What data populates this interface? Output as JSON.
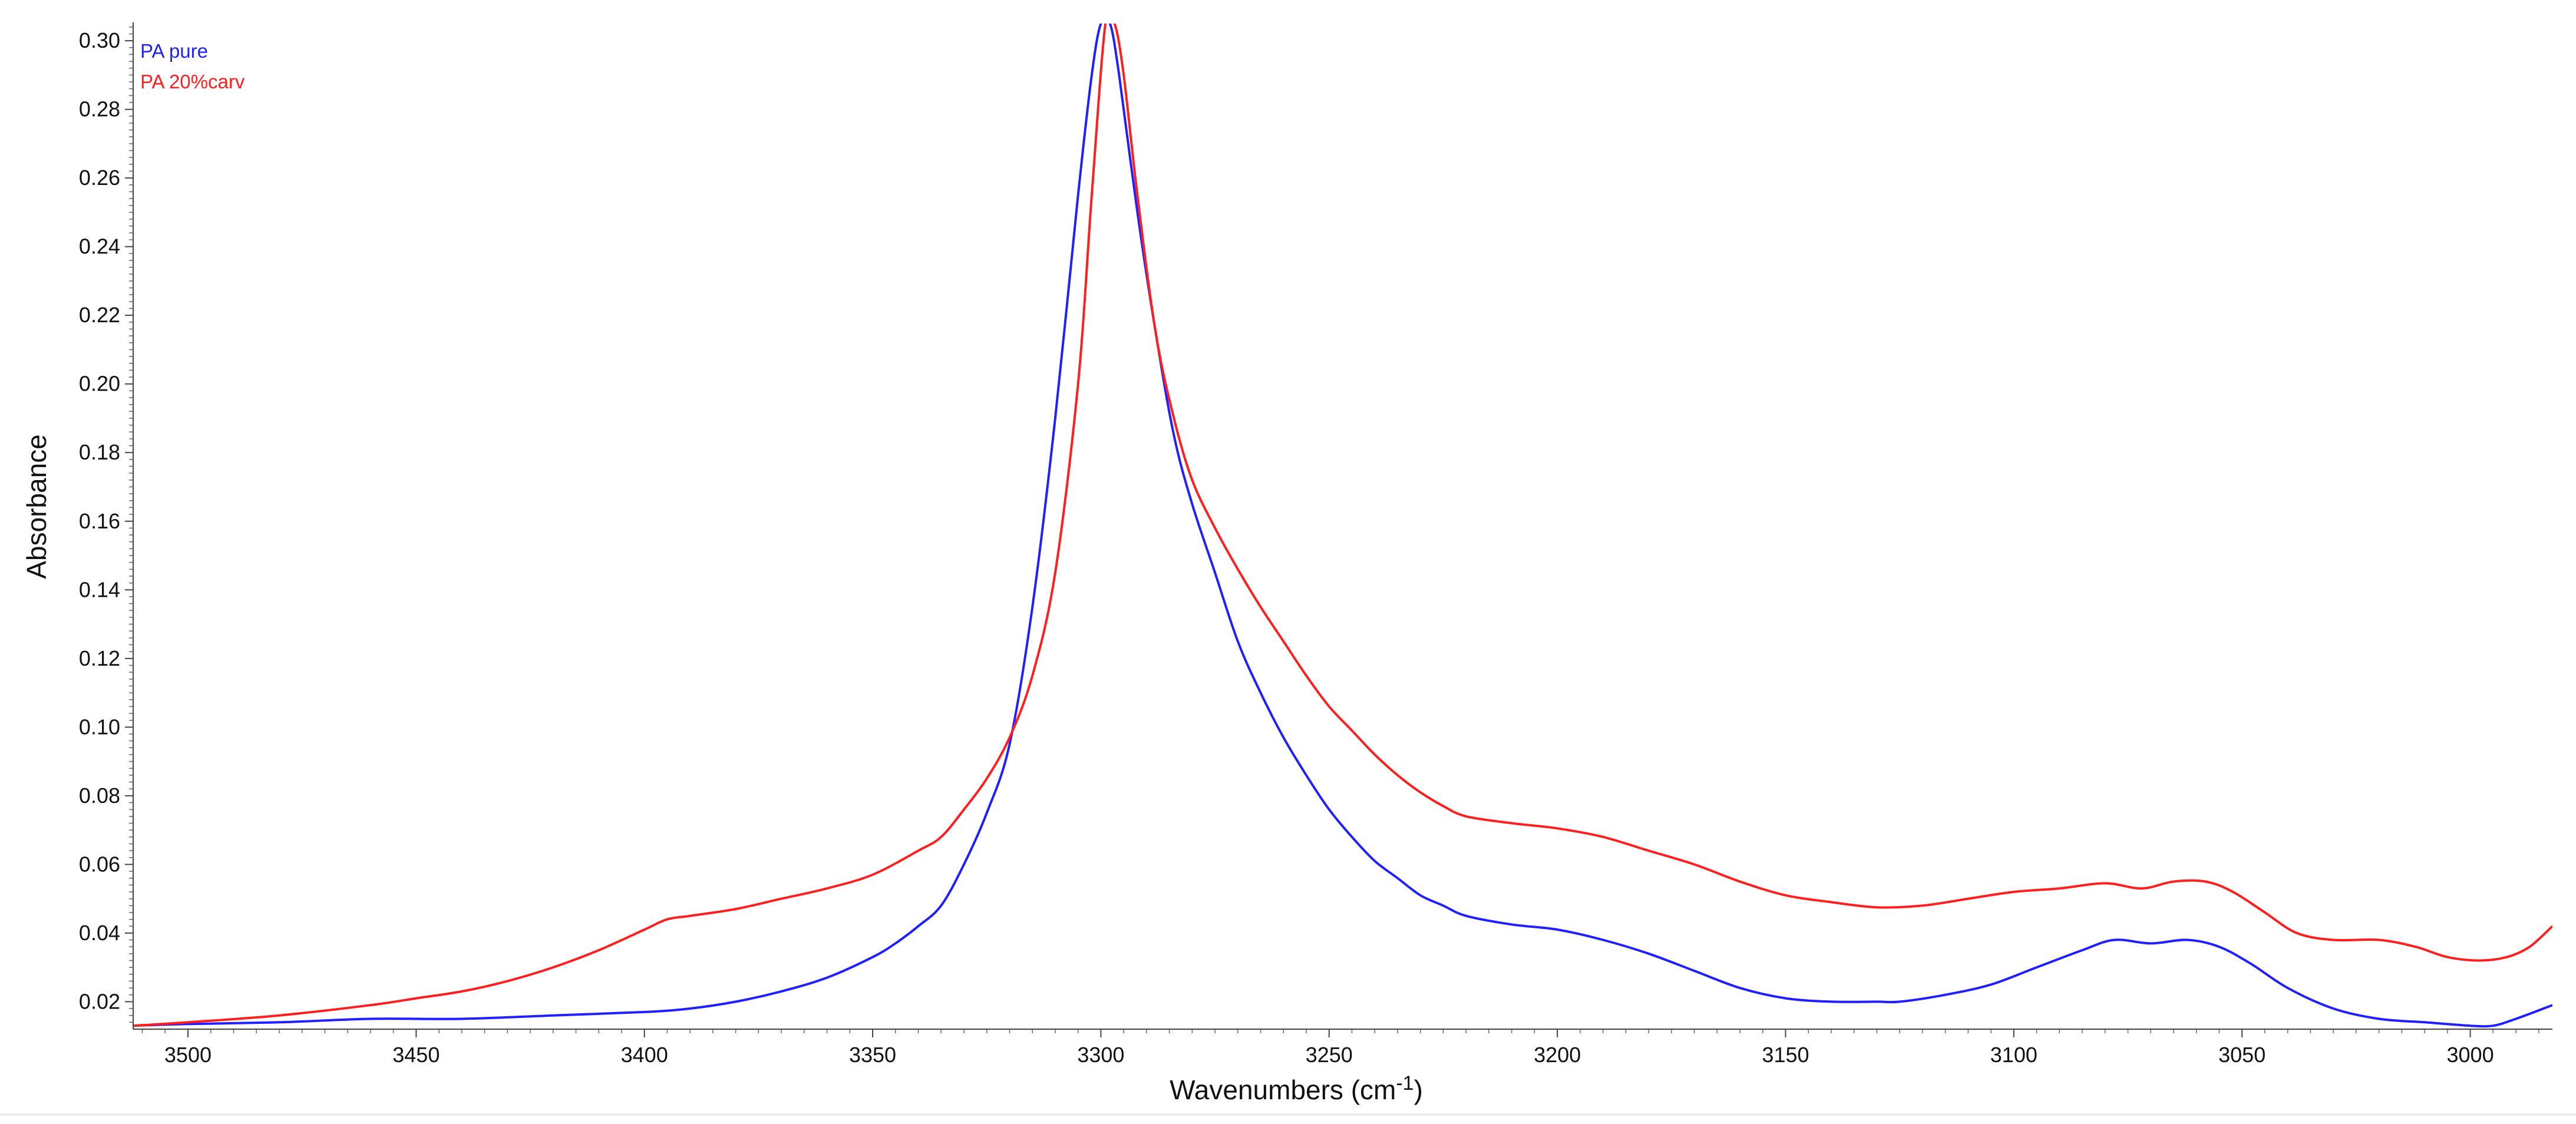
{
  "chart_data": {
    "type": "line",
    "xlabel": "Wavenumbers (cm",
    "xlabel_superscript": "-1",
    "xlabel_suffix": ")",
    "ylabel": "Absorbance",
    "xlim": [
      3512,
      2982
    ],
    "x_reversed": true,
    "ylim": [
      0.012,
      0.305
    ],
    "x_ticks": [
      3500,
      3450,
      3400,
      3350,
      3300,
      3250,
      3200,
      3150,
      3100,
      3050,
      3000
    ],
    "y_ticks": [
      0.02,
      0.04,
      0.06,
      0.08,
      0.1,
      0.12,
      0.14,
      0.16,
      0.18,
      0.2,
      0.22,
      0.24,
      0.26,
      0.28,
      0.3
    ],
    "y_tick_labels": [
      "0.02",
      "0.04",
      "0.06",
      "0.08",
      "0.10",
      "0.12",
      "0.14",
      "0.16",
      "0.18",
      "0.20",
      "0.22",
      "0.24",
      "0.26",
      "0.28",
      "0.30"
    ],
    "grid": false,
    "legend_position": "top-left",
    "series": [
      {
        "name": "PA pure",
        "color": "#1f1fff",
        "points": [
          [
            3512,
            0.013
          ],
          [
            3500,
            0.0135
          ],
          [
            3480,
            0.014
          ],
          [
            3460,
            0.015
          ],
          [
            3440,
            0.015
          ],
          [
            3420,
            0.016
          ],
          [
            3400,
            0.017
          ],
          [
            3390,
            0.018
          ],
          [
            3380,
            0.02
          ],
          [
            3370,
            0.023
          ],
          [
            3360,
            0.027
          ],
          [
            3350,
            0.033
          ],
          [
            3345,
            0.037
          ],
          [
            3340,
            0.042
          ],
          [
            3335,
            0.048
          ],
          [
            3330,
            0.06
          ],
          [
            3325,
            0.075
          ],
          [
            3320,
            0.095
          ],
          [
            3315,
            0.135
          ],
          [
            3310,
            0.19
          ],
          [
            3305,
            0.255
          ],
          [
            3302,
            0.29
          ],
          [
            3300,
            0.305
          ],
          [
            3298,
            0.305
          ],
          [
            3296,
            0.29
          ],
          [
            3292,
            0.25
          ],
          [
            3288,
            0.215
          ],
          [
            3284,
            0.185
          ],
          [
            3280,
            0.165
          ],
          [
            3275,
            0.145
          ],
          [
            3270,
            0.125
          ],
          [
            3265,
            0.11
          ],
          [
            3260,
            0.097
          ],
          [
            3255,
            0.086
          ],
          [
            3250,
            0.076
          ],
          [
            3245,
            0.068
          ],
          [
            3240,
            0.061
          ],
          [
            3235,
            0.056
          ],
          [
            3230,
            0.051
          ],
          [
            3225,
            0.048
          ],
          [
            3220,
            0.045
          ],
          [
            3210,
            0.0425
          ],
          [
            3200,
            0.041
          ],
          [
            3190,
            0.038
          ],
          [
            3180,
            0.034
          ],
          [
            3170,
            0.029
          ],
          [
            3160,
            0.024
          ],
          [
            3150,
            0.021
          ],
          [
            3140,
            0.02
          ],
          [
            3130,
            0.02
          ],
          [
            3125,
            0.02
          ],
          [
            3115,
            0.022
          ],
          [
            3105,
            0.025
          ],
          [
            3095,
            0.03
          ],
          [
            3085,
            0.035
          ],
          [
            3078,
            0.038
          ],
          [
            3070,
            0.037
          ],
          [
            3062,
            0.038
          ],
          [
            3055,
            0.036
          ],
          [
            3048,
            0.031
          ],
          [
            3040,
            0.024
          ],
          [
            3030,
            0.018
          ],
          [
            3020,
            0.015
          ],
          [
            3010,
            0.014
          ],
          [
            3000,
            0.013
          ],
          [
            2995,
            0.013
          ],
          [
            2990,
            0.015
          ],
          [
            2982,
            0.019
          ]
        ]
      },
      {
        "name": "PA 20%carv",
        "color": "#ff1f1f",
        "points": [
          [
            3512,
            0.013
          ],
          [
            3500,
            0.014
          ],
          [
            3480,
            0.016
          ],
          [
            3460,
            0.019
          ],
          [
            3450,
            0.021
          ],
          [
            3440,
            0.023
          ],
          [
            3430,
            0.026
          ],
          [
            3420,
            0.03
          ],
          [
            3410,
            0.035
          ],
          [
            3400,
            0.041
          ],
          [
            3395,
            0.044
          ],
          [
            3390,
            0.045
          ],
          [
            3380,
            0.047
          ],
          [
            3370,
            0.05
          ],
          [
            3360,
            0.053
          ],
          [
            3350,
            0.057
          ],
          [
            3340,
            0.064
          ],
          [
            3335,
            0.068
          ],
          [
            3330,
            0.076
          ],
          [
            3325,
            0.085
          ],
          [
            3320,
            0.097
          ],
          [
            3315,
            0.115
          ],
          [
            3310,
            0.145
          ],
          [
            3305,
            0.2
          ],
          [
            3302,
            0.255
          ],
          [
            3299,
            0.305
          ],
          [
            3297,
            0.305
          ],
          [
            3295,
            0.29
          ],
          [
            3292,
            0.255
          ],
          [
            3288,
            0.215
          ],
          [
            3284,
            0.19
          ],
          [
            3280,
            0.172
          ],
          [
            3275,
            0.158
          ],
          [
            3270,
            0.146
          ],
          [
            3265,
            0.135
          ],
          [
            3260,
            0.125
          ],
          [
            3255,
            0.115
          ],
          [
            3250,
            0.106
          ],
          [
            3245,
            0.099
          ],
          [
            3240,
            0.092
          ],
          [
            3235,
            0.086
          ],
          [
            3230,
            0.081
          ],
          [
            3225,
            0.077
          ],
          [
            3220,
            0.074
          ],
          [
            3210,
            0.072
          ],
          [
            3200,
            0.0705
          ],
          [
            3190,
            0.068
          ],
          [
            3180,
            0.064
          ],
          [
            3170,
            0.06
          ],
          [
            3160,
            0.055
          ],
          [
            3150,
            0.051
          ],
          [
            3140,
            0.049
          ],
          [
            3130,
            0.0475
          ],
          [
            3120,
            0.048
          ],
          [
            3110,
            0.05
          ],
          [
            3100,
            0.052
          ],
          [
            3090,
            0.053
          ],
          [
            3080,
            0.0545
          ],
          [
            3072,
            0.053
          ],
          [
            3065,
            0.055
          ],
          [
            3058,
            0.055
          ],
          [
            3052,
            0.052
          ],
          [
            3045,
            0.046
          ],
          [
            3038,
            0.04
          ],
          [
            3030,
            0.038
          ],
          [
            3020,
            0.038
          ],
          [
            3012,
            0.036
          ],
          [
            3005,
            0.033
          ],
          [
            2998,
            0.032
          ],
          [
            2992,
            0.033
          ],
          [
            2987,
            0.036
          ],
          [
            2982,
            0.042
          ]
        ]
      }
    ]
  }
}
